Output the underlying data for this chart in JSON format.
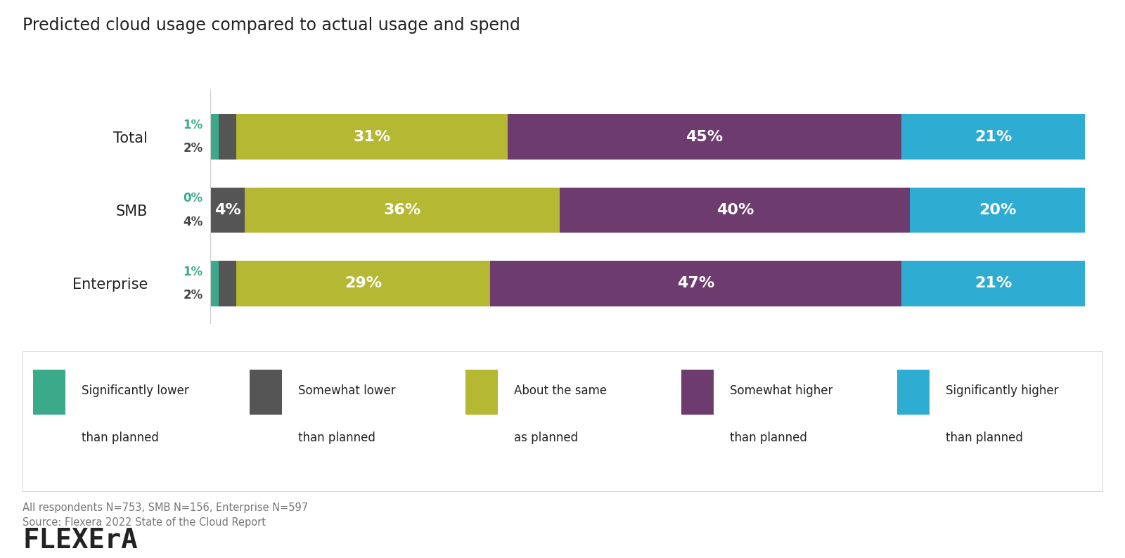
{
  "title": "Predicted cloud usage compared to actual usage and spend",
  "categories": [
    "Total",
    "SMB",
    "Enterprise"
  ],
  "segments": [
    "Significantly lower\nthan planned",
    "Somewhat lower\nthan planned",
    "About the same\nas planned",
    "Somewhat higher\nthan planned",
    "Significantly higher\nthan planned"
  ],
  "values": {
    "Total": [
      1,
      2,
      31,
      45,
      21
    ],
    "SMB": [
      0,
      4,
      36,
      40,
      20
    ],
    "Enterprise": [
      1,
      2,
      29,
      47,
      21
    ]
  },
  "colors": [
    "#3aaa8a",
    "#555555",
    "#b5b832",
    "#6d3b6e",
    "#2eacd1"
  ],
  "bar_height": 0.62,
  "background_color": "#ffffff",
  "title_fontsize": 17,
  "label_fontsize": 16,
  "tick_fontsize": 15,
  "legend_fontsize": 12,
  "green_color": "#3aaa8a",
  "dark_color": "#444444",
  "white_color": "#ffffff",
  "footnote": "All respondents N=753, SMB N=156, Enterprise N=597\nSource: Flexera 2022 State of the Cloud Report",
  "footnote_fontsize": 10.5,
  "logo_fontsize": 28
}
